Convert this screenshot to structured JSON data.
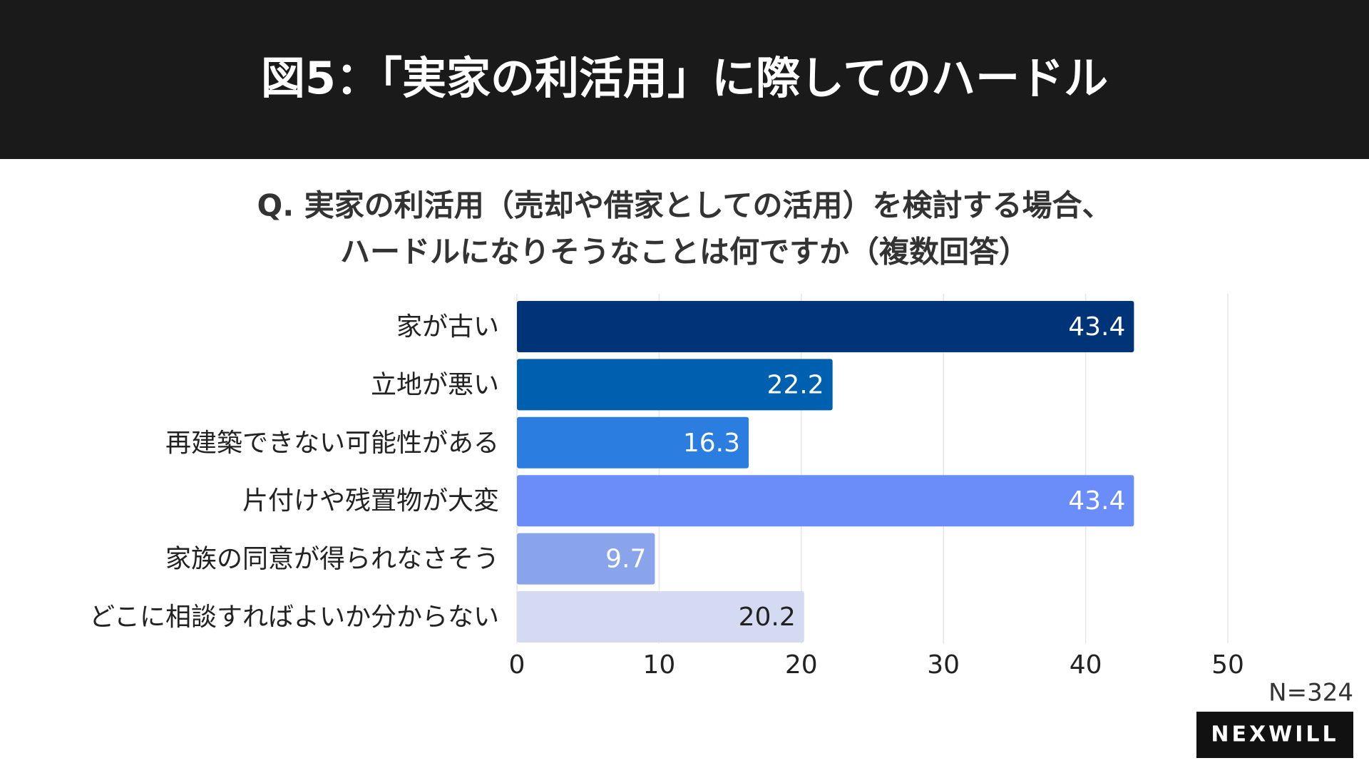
{
  "chart_data": {
    "type": "bar",
    "orientation": "horizontal",
    "title": "図5：「実家の利活用」に際してのハードル",
    "subtitle": [
      "Q. 実家の利活用（売却や借家としての活用）を検討する場合、",
      "ハードルになりそうなことは何ですか（複数回答）"
    ],
    "categories": [
      "家が古い",
      "立地が悪い",
      "再建築できない可能性がある",
      "片付けや残置物が大変",
      "家族の同意が得られなさそう",
      "どこに相談すればよいか分からない"
    ],
    "values": [
      43.4,
      22.2,
      16.3,
      43.4,
      9.7,
      20.2
    ],
    "colors": [
      "#003478",
      "#0060b0",
      "#2b7de0",
      "#6b8dfa",
      "#8aa4ec",
      "#d4daf2"
    ],
    "label_colors": [
      "#ffffff",
      "#ffffff",
      "#ffffff",
      "#ffffff",
      "#ffffff",
      "#222222"
    ],
    "xlim": [
      0,
      50
    ],
    "xticks": [
      0,
      10,
      20,
      30,
      40,
      50
    ],
    "grid": true,
    "note": "N=324",
    "logo": "NEXWILL"
  }
}
